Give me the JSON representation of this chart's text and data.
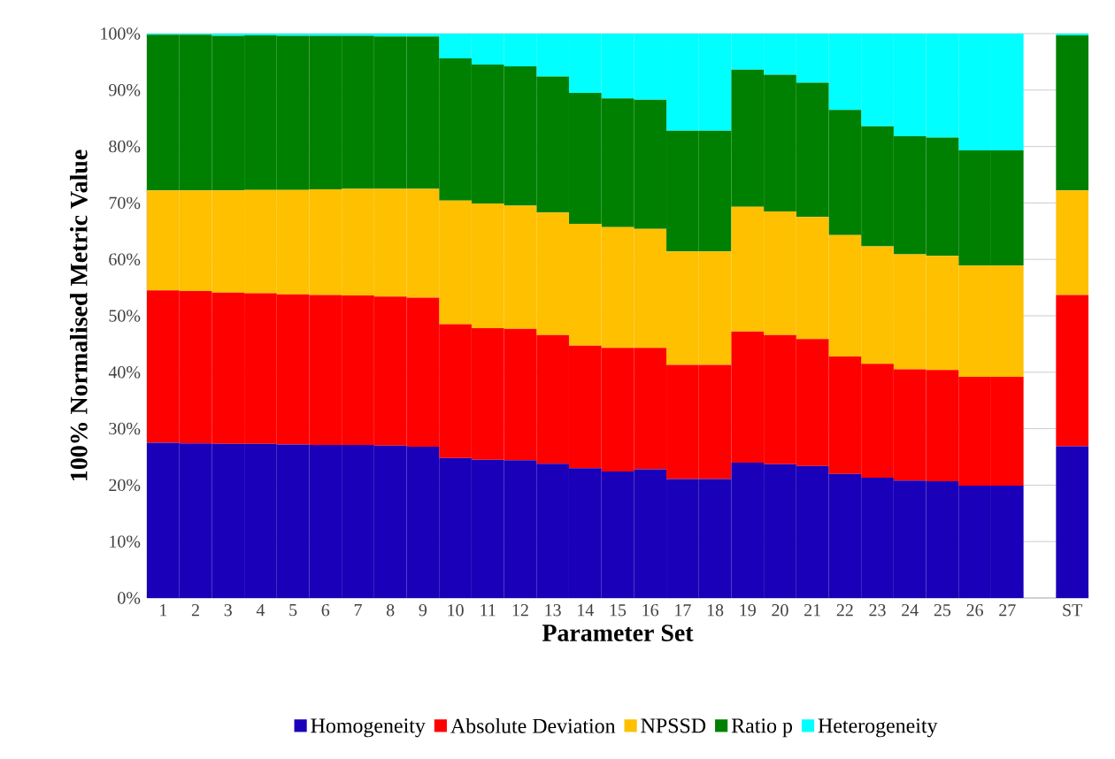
{
  "chart_data": {
    "type": "bar",
    "stacked": true,
    "xlabel": "Parameter Set",
    "ylabel": "100% Normalised Metric Value",
    "categories": [
      "1",
      "2",
      "3",
      "4",
      "5",
      "6",
      "7",
      "8",
      "9",
      "10",
      "11",
      "12",
      "13",
      "14",
      "15",
      "16",
      "17",
      "18",
      "19",
      "20",
      "21",
      "22",
      "23",
      "24",
      "25",
      "26",
      "27",
      null,
      "ST"
    ],
    "series": [
      {
        "name": "Homogeneity",
        "color": "#1a00b8",
        "values": [
          27.5,
          27.4,
          27.3,
          27.3,
          27.2,
          27.1,
          27.1,
          27.0,
          26.8,
          24.8,
          24.5,
          24.4,
          23.8,
          23.0,
          22.4,
          22.8,
          21.1,
          21.1,
          24.0,
          23.7,
          23.4,
          22.0,
          21.3,
          20.8,
          20.7,
          19.9,
          19.9,
          null,
          26.9
        ]
      },
      {
        "name": "Absolute Deviation",
        "color": "#ff0000",
        "values": [
          27.0,
          27.0,
          26.8,
          26.7,
          26.6,
          26.6,
          26.5,
          26.4,
          26.4,
          23.7,
          23.3,
          23.3,
          22.8,
          21.7,
          21.9,
          21.5,
          20.2,
          20.2,
          23.2,
          22.9,
          22.5,
          20.8,
          20.2,
          19.7,
          19.7,
          19.3,
          19.3,
          null,
          26.8
        ]
      },
      {
        "name": "NPSSD",
        "color": "#ffc000",
        "values": [
          17.7,
          17.8,
          18.1,
          18.3,
          18.5,
          18.7,
          18.9,
          19.1,
          19.3,
          21.9,
          22.1,
          21.8,
          21.7,
          21.6,
          21.4,
          21.1,
          20.1,
          20.1,
          22.1,
          21.9,
          21.6,
          21.5,
          20.8,
          20.4,
          20.2,
          19.7,
          19.7,
          null,
          18.5
        ]
      },
      {
        "name": "Ratio p",
        "color": "#008000",
        "values": [
          27.6,
          27.6,
          27.4,
          27.4,
          27.3,
          27.2,
          27.1,
          27.0,
          27.0,
          25.2,
          24.6,
          24.7,
          24.1,
          23.2,
          22.8,
          22.9,
          21.4,
          21.4,
          24.3,
          24.2,
          23.8,
          22.2,
          21.3,
          20.9,
          21.0,
          20.4,
          20.4,
          null,
          27.5
        ]
      },
      {
        "name": "Heterogeneity",
        "color": "#00ffff",
        "values": [
          0.2,
          0.2,
          0.4,
          0.3,
          0.4,
          0.4,
          0.4,
          0.5,
          0.5,
          4.4,
          5.5,
          5.8,
          7.6,
          10.5,
          11.5,
          11.7,
          17.2,
          17.2,
          6.4,
          7.3,
          8.7,
          13.5,
          16.4,
          18.2,
          18.4,
          20.7,
          20.7,
          null,
          0.3
        ]
      }
    ],
    "ylim": [
      0,
      100
    ],
    "yticks": [
      {
        "value": 0,
        "label": "0%"
      },
      {
        "value": 10,
        "label": "10%"
      },
      {
        "value": 20,
        "label": "20%"
      },
      {
        "value": 30,
        "label": "30%"
      },
      {
        "value": 40,
        "label": "40%"
      },
      {
        "value": 50,
        "label": "50%"
      },
      {
        "value": 60,
        "label": "60%"
      },
      {
        "value": 70,
        "label": "70%"
      },
      {
        "value": 80,
        "label": "80%"
      },
      {
        "value": 90,
        "label": "90%"
      },
      {
        "value": 100,
        "label": "100%"
      }
    ],
    "grid": "y",
    "legend": "bottom"
  }
}
